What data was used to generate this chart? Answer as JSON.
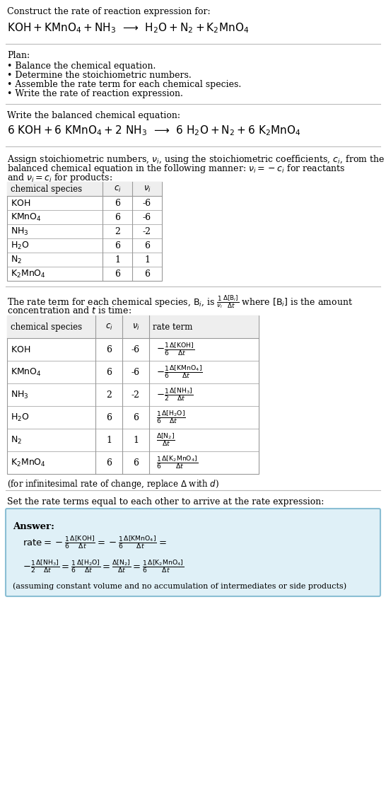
{
  "title_line1": "Construct the rate of reaction expression for:",
  "plan_header": "Plan:",
  "plan_steps": [
    "• Balance the chemical equation.",
    "• Determine the stoichiometric numbers.",
    "• Assemble the rate term for each chemical species.",
    "• Write the rate of reaction expression."
  ],
  "balanced_header": "Write the balanced chemical equation:",
  "table1_rows": [
    [
      "KOH",
      "6",
      "-6"
    ],
    [
      "KMnO_4",
      "6",
      "-6"
    ],
    [
      "NH_3",
      "2",
      "-2"
    ],
    [
      "H_2O",
      "6",
      "6"
    ],
    [
      "N_2",
      "1",
      "1"
    ],
    [
      "K_2MnO_4",
      "6",
      "6"
    ]
  ],
  "table2_rows": [
    [
      "KOH",
      "6",
      "-6"
    ],
    [
      "KMnO_4",
      "6",
      "-6"
    ],
    [
      "NH_3",
      "2",
      "-2"
    ],
    [
      "H_2O",
      "6",
      "6"
    ],
    [
      "N_2",
      "1",
      "1"
    ],
    [
      "K_2MnO_4",
      "6",
      "6"
    ]
  ],
  "infinitesimal_note": "(for infinitesimal rate of change, replace Δ with d)",
  "set_equal_text": "Set the rate terms equal to each other to arrive at the rate expression:",
  "answer_label": "Answer:",
  "answer_box_color": "#dff0f7",
  "answer_border_color": "#8bbfd4",
  "bg_color": "#ffffff",
  "text_color": "#000000",
  "table_border_color": "#999999",
  "table_header_bg": "#eeeeee",
  "font_size": 9.0,
  "reaction_font_size": 11.0
}
